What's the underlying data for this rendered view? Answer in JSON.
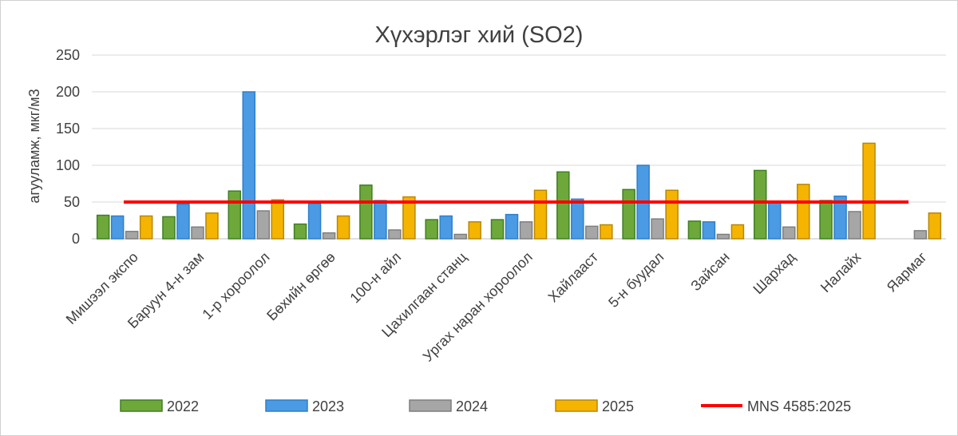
{
  "chart_data": {
    "type": "bar",
    "title": "Хүхэрлэг хий (SO2)",
    "ylabel": "агууламж, мкг/м3",
    "xlabel": "",
    "ylim": [
      0,
      250
    ],
    "yticks": [
      0,
      50,
      100,
      150,
      200,
      250
    ],
    "grid": true,
    "legend_position": "bottom",
    "categories": [
      "Мишээл экспо",
      "Баруун 4-н зам",
      "1-р хороолол",
      "Бөхийн өргөө",
      "100-н айл",
      "Цахилгаан станц",
      "Ургах наран хороолол",
      "Хайлааст",
      "5-н буудал",
      "Зайсан",
      "Шархад",
      "Налайх",
      "Яармаг"
    ],
    "series": [
      {
        "name": "2022",
        "color": "#6ea83b",
        "stroke": "#3f7f22",
        "values": [
          32,
          30,
          65,
          20,
          73,
          26,
          26,
          91,
          67,
          24,
          93,
          52,
          null
        ]
      },
      {
        "name": "2023",
        "color": "#4a9be3",
        "stroke": "#2f7fcc",
        "values": [
          31,
          47,
          200,
          48,
          52,
          31,
          33,
          54,
          100,
          23,
          50,
          58,
          null
        ]
      },
      {
        "name": "2024",
        "color": "#a6a6a6",
        "stroke": "#7f7f7f",
        "values": [
          10,
          16,
          38,
          8,
          12,
          6,
          23,
          17,
          27,
          6,
          16,
          37,
          11
        ]
      },
      {
        "name": "2025",
        "color": "#f5b400",
        "stroke": "#b88700",
        "values": [
          31,
          35,
          53,
          31,
          57,
          23,
          66,
          19,
          66,
          19,
          74,
          130,
          35
        ]
      }
    ],
    "reference_line": {
      "name": "MNS 4585:2025",
      "value": 50,
      "color": "#ff0000"
    }
  }
}
